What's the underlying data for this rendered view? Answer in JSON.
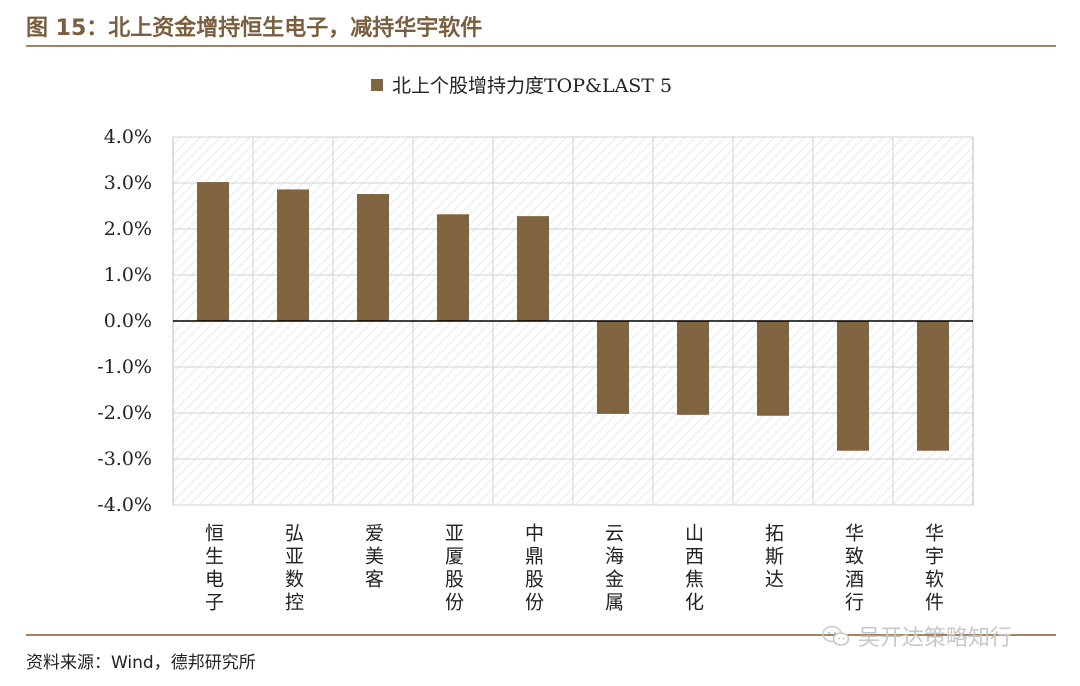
{
  "figure_title": "图 15：北上资金增持恒生电子，减持华宇软件",
  "source": "资料来源：Wind，德邦研究所",
  "watermark": "吴开达策略知行",
  "colors": {
    "bar": "#7f643f",
    "accent": "#a28560",
    "title": "#7a5f3f"
  },
  "chart_data": {
    "type": "bar",
    "title": "",
    "legend": [
      "北上个股增持力度TOP&LAST 5"
    ],
    "legend_position": "top-center",
    "categories": [
      "恒生电子",
      "弘亚数控",
      "爱美客",
      "亚厦股份",
      "中鼎股份",
      "云海金属",
      "山西焦化",
      "拓斯达",
      "华致酒行",
      "华宇软件"
    ],
    "series": [
      {
        "name": "北上个股增持力度TOP&LAST 5",
        "values": [
          3.02,
          2.86,
          2.76,
          2.32,
          2.28,
          -2.02,
          -2.04,
          -2.06,
          -2.82,
          -2.82
        ]
      }
    ],
    "yticks": [
      "4.0%",
      "3.0%",
      "2.0%",
      "1.0%",
      "0.0%",
      "-1.0%",
      "-2.0%",
      "-3.0%",
      "-4.0%"
    ],
    "ylim": [
      -4,
      4
    ],
    "xlabel": "",
    "ylabel": "",
    "grid": true
  }
}
